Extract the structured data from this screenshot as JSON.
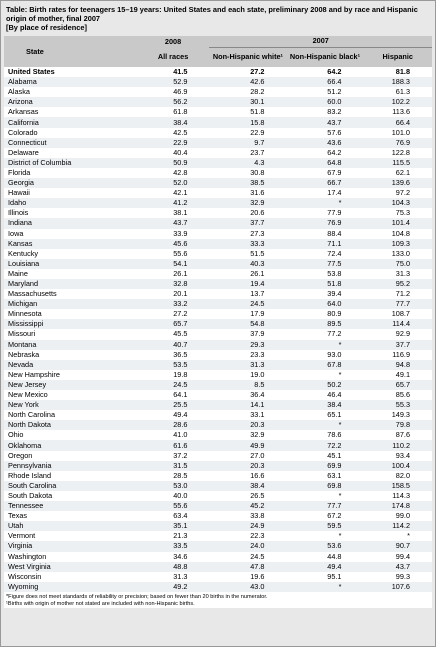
{
  "header": {
    "title": "Table: Birth rates for teenagers 15–19 years: United States and each state, preliminary 2008 and by race and Hispanic origin of mother, final 2007",
    "subtitle": "[By place of residence]"
  },
  "table": {
    "columns": {
      "state": "State",
      "year_2008": "2008",
      "all_races": "All races",
      "year_2007": "2007",
      "white": "Non-Hispanic white¹",
      "black": "Non-Hispanic black¹",
      "hispanic": "Hispanic"
    },
    "rows": [
      [
        "United States",
        "41.5",
        "27.2",
        "64.2",
        "81.8"
      ],
      [
        "Alabama",
        "52.9",
        "42.6",
        "66.4",
        "188.3"
      ],
      [
        "Alaska",
        "46.9",
        "28.2",
        "51.2",
        "61.3"
      ],
      [
        "Arizona",
        "56.2",
        "30.1",
        "60.0",
        "102.2"
      ],
      [
        "Arkansas",
        "61.8",
        "51.8",
        "83.2",
        "113.6"
      ],
      [
        "California",
        "38.4",
        "15.8",
        "43.7",
        "66.4"
      ],
      [
        "Colorado",
        "42.5",
        "22.9",
        "57.6",
        "101.0"
      ],
      [
        "Connecticut",
        "22.9",
        "9.7",
        "43.6",
        "76.9"
      ],
      [
        "Delaware",
        "40.4",
        "23.7",
        "64.2",
        "122.8"
      ],
      [
        "District of Columbia",
        "50.9",
        "4.3",
        "64.8",
        "115.5"
      ],
      [
        "Florida",
        "42.8",
        "30.8",
        "67.9",
        "62.1"
      ],
      [
        "Georgia",
        "52.0",
        "38.5",
        "66.7",
        "139.6"
      ],
      [
        "Hawaii",
        "42.1",
        "31.6",
        "17.4",
        "97.2"
      ],
      [
        "Idaho",
        "41.2",
        "32.9",
        "*",
        "104.3"
      ],
      [
        "Illinois",
        "38.1",
        "20.6",
        "77.9",
        "75.3"
      ],
      [
        "Indiana",
        "43.7",
        "37.7",
        "76.9",
        "101.4"
      ],
      [
        "Iowa",
        "33.9",
        "27.3",
        "88.4",
        "104.8"
      ],
      [
        "Kansas",
        "45.6",
        "33.3",
        "71.1",
        "109.3"
      ],
      [
        "Kentucky",
        "55.6",
        "51.5",
        "72.4",
        "133.0"
      ],
      [
        "Louisiana",
        "54.1",
        "40.3",
        "77.5",
        "75.0"
      ],
      [
        "Maine",
        "26.1",
        "26.1",
        "53.8",
        "31.3"
      ],
      [
        "Maryland",
        "32.8",
        "19.4",
        "51.8",
        "95.2"
      ],
      [
        "Massachusetts",
        "20.1",
        "13.7",
        "39.4",
        "71.2"
      ],
      [
        "Michigan",
        "33.2",
        "24.5",
        "64.0",
        "77.7"
      ],
      [
        "Minnesota",
        "27.2",
        "17.9",
        "80.9",
        "108.7"
      ],
      [
        "Mississippi",
        "65.7",
        "54.8",
        "89.5",
        "114.4"
      ],
      [
        "Missouri",
        "45.5",
        "37.9",
        "77.2",
        "92.9"
      ],
      [
        "Montana",
        "40.7",
        "29.3",
        "*",
        "37.7"
      ],
      [
        "Nebraska",
        "36.5",
        "23.3",
        "93.0",
        "116.9"
      ],
      [
        "Nevada",
        "53.5",
        "31.3",
        "67.8",
        "94.8"
      ],
      [
        "New Hampshire",
        "19.8",
        "19.0",
        "*",
        "49.1"
      ],
      [
        "New Jersey",
        "24.5",
        "8.5",
        "50.2",
        "65.7"
      ],
      [
        "New Mexico",
        "64.1",
        "36.4",
        "46.4",
        "85.6"
      ],
      [
        "New York",
        "25.5",
        "14.1",
        "38.4",
        "55.3"
      ],
      [
        "North Carolina",
        "49.4",
        "33.1",
        "65.1",
        "149.3"
      ],
      [
        "North Dakota",
        "28.6",
        "20.3",
        "*",
        "79.8"
      ],
      [
        "Ohio",
        "41.0",
        "32.9",
        "78.6",
        "87.6"
      ],
      [
        "Oklahoma",
        "61.6",
        "49.9",
        "72.2",
        "110.2"
      ],
      [
        "Oregon",
        "37.2",
        "27.0",
        "45.1",
        "93.4"
      ],
      [
        "Pennsylvania",
        "31.5",
        "20.3",
        "69.9",
        "100.4"
      ],
      [
        "Rhode Island",
        "28.5",
        "16.6",
        "63.1",
        "82.0"
      ],
      [
        "South Carolina",
        "53.0",
        "38.4",
        "69.8",
        "158.5"
      ],
      [
        "South Dakota",
        "40.0",
        "26.5",
        "*",
        "114.3"
      ],
      [
        "Tennessee",
        "55.6",
        "45.2",
        "77.7",
        "174.8"
      ],
      [
        "Texas",
        "63.4",
        "33.8",
        "67.2",
        "99.0"
      ],
      [
        "Utah",
        "35.1",
        "24.9",
        "59.5",
        "114.2"
      ],
      [
        "Vermont",
        "21.3",
        "22.3",
        "*",
        "*"
      ],
      [
        "Virginia",
        "33.5",
        "24.0",
        "53.6",
        "90.7"
      ],
      [
        "Washington",
        "34.6",
        "24.5",
        "44.8",
        "99.4"
      ],
      [
        "West Virginia",
        "48.8",
        "47.8",
        "49.4",
        "43.7"
      ],
      [
        "Wisconsin",
        "31.3",
        "19.6",
        "95.1",
        "99.3"
      ],
      [
        "Wyoming",
        "49.2",
        "43.0",
        "*",
        "107.6"
      ]
    ]
  },
  "footnotes": [
    "*Figure does not meet standards of reliability or precision; based on fewer than 20 births in the numerator.",
    "¹Births with origin of mother not stated are included with non-Hispanic births."
  ]
}
